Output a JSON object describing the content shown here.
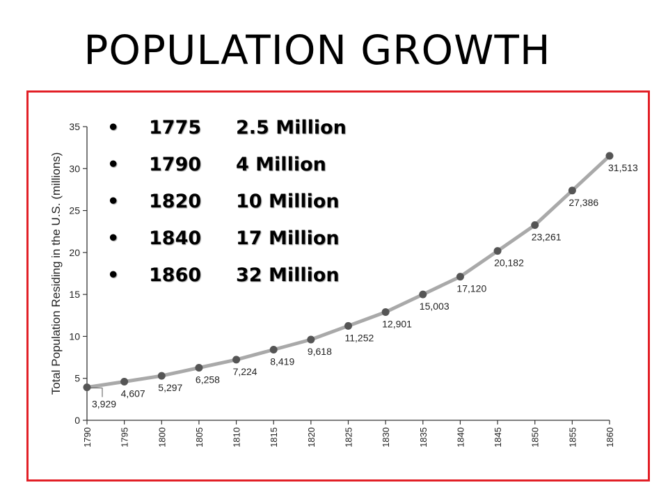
{
  "slide": {
    "title": "POPULATION GROWTH",
    "frame_color": "#e21f26"
  },
  "bullets": [
    {
      "year": "1775",
      "value": "2.5 Million"
    },
    {
      "year": "1790",
      "value": "4 Million"
    },
    {
      "year": "1820",
      "value": "10 Million"
    },
    {
      "year": "1840",
      "value": "17 Million"
    },
    {
      "year": "1860",
      "value": "32 Million"
    }
  ],
  "chart_data": {
    "type": "line",
    "title": "",
    "xlabel": "",
    "ylabel": "Total Population Residing in the U.S. (millions)",
    "x": [
      1790,
      1795,
      1800,
      1805,
      1810,
      1815,
      1820,
      1825,
      1830,
      1835,
      1840,
      1845,
      1850,
      1855,
      1860
    ],
    "series": [
      {
        "values": [
          3.929,
          4.607,
          5.297,
          6.258,
          7.224,
          8.419,
          9.618,
          11.252,
          12.901,
          15.003,
          17.12,
          20.182,
          23.261,
          27.386,
          31.513
        ],
        "labels": [
          "3,929",
          "4,607",
          "5,297",
          "6,258",
          "7,224",
          "8,419",
          "9,618",
          "11,252",
          "12,901",
          "15,003",
          "17,120",
          "20,182",
          "23,261",
          "27,386",
          "31,513"
        ]
      }
    ],
    "xlim": [
      1790,
      1860
    ],
    "ylim": [
      0,
      35
    ],
    "yticks": [
      0,
      5,
      10,
      15,
      20,
      25,
      30,
      35
    ],
    "xticks": [
      "1790",
      "1795",
      "1800",
      "1805",
      "1810",
      "1815",
      "1820",
      "1825",
      "1830",
      "1835",
      "1840",
      "1845",
      "1850",
      "1855",
      "1860"
    ],
    "grid": false,
    "line_color": "#a9a9a9",
    "marker_color": "#555555"
  }
}
